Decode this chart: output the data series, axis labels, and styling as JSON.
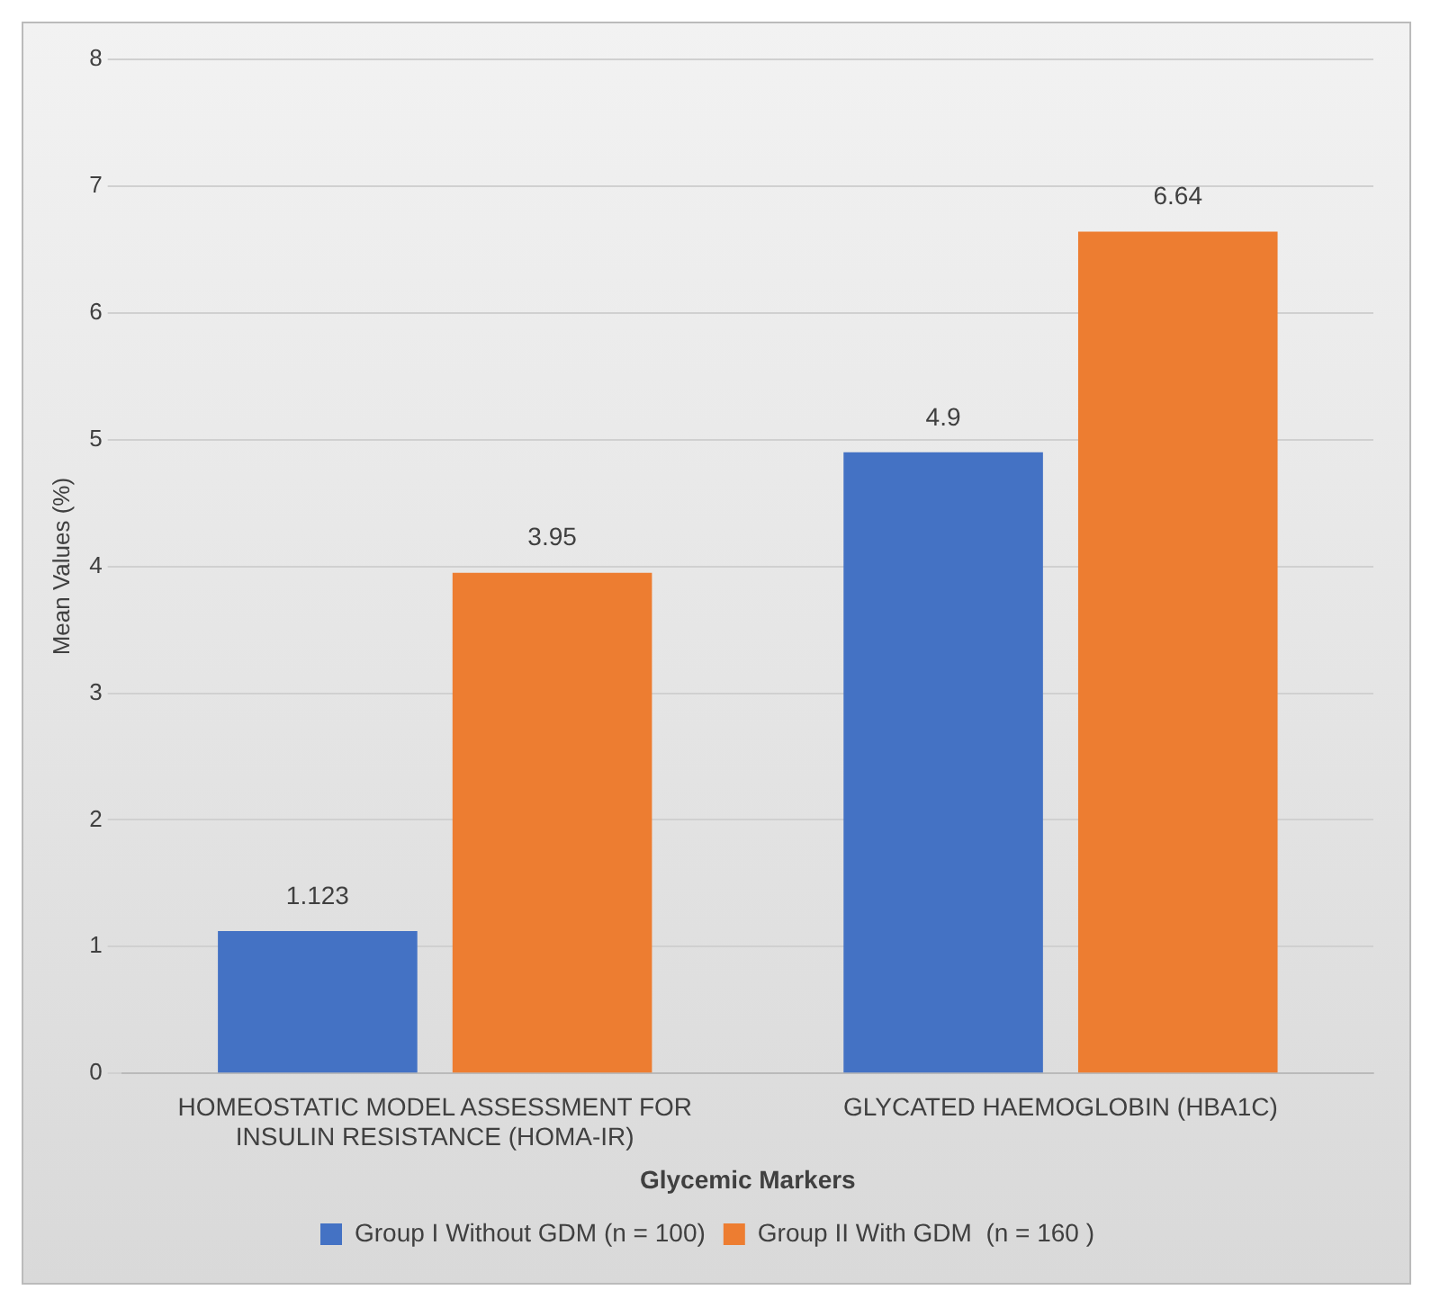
{
  "chart_data": {
    "type": "bar",
    "xlabel": "Glycemic Markers",
    "ylabel": "Mean Values (%)",
    "categories": [
      "HOMEOSTATIC MODEL ASSESSMENT FOR INSULIN RESISTANCE (HOMA-IR)",
      "GLYCATED HAEMOGLOBIN (HBA1C)"
    ],
    "series": [
      {
        "name": "Group I Without GDM (n = 100)",
        "color": "#4472c4",
        "values": [
          1.123,
          4.9
        ]
      },
      {
        "name": "Group II With GDM  (n = 160 )",
        "color": "#ed7d31",
        "values": [
          3.95,
          6.64
        ]
      }
    ],
    "ylim": [
      0,
      8
    ],
    "yticks": [
      0,
      1,
      2,
      3,
      4,
      5,
      6,
      7,
      8
    ],
    "grid": "y",
    "legend": "bottom",
    "data_labels": true
  }
}
